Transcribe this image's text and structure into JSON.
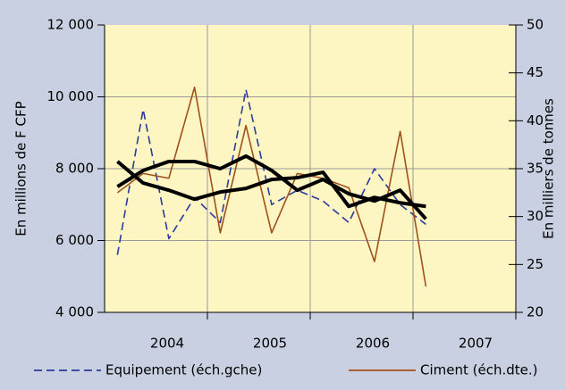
{
  "chart_data": {
    "type": "line",
    "y_label": "En millions de F CFP",
    "y2_label": "En milliers de tonnes",
    "x": [
      2003.125,
      2003.375,
      2003.625,
      2003.875,
      2004.125,
      2004.375,
      2004.625,
      2004.875,
      2005.125,
      2005.375,
      2005.625,
      2005.875,
      2006.125
    ],
    "xlim": [
      2003,
      2007
    ],
    "xticks": [
      2004,
      2005,
      2006,
      2007
    ],
    "ylim": [
      4000,
      12000
    ],
    "yticks": [
      {
        "value": 4000,
        "label": "4 000"
      },
      {
        "value": 6000,
        "label": "6 000"
      },
      {
        "value": 8000,
        "label": "8 000"
      },
      {
        "value": 10000,
        "label": "10 000"
      },
      {
        "value": 12000,
        "label": "12 000"
      }
    ],
    "y2lim": [
      20,
      50
    ],
    "y2ticks": [
      20,
      25,
      30,
      35,
      40,
      45,
      50
    ],
    "grid": true,
    "series": [
      {
        "name": "Equipement (éch.gche)",
        "color": "#2b3a9c",
        "dash": true,
        "axis": "y",
        "values": [
          5600,
          9650,
          6050,
          7200,
          6500,
          10200,
          7000,
          7400,
          7100,
          6500,
          8000,
          7000,
          6450
        ]
      },
      {
        "name": "Ciment (éch.dte.)",
        "color": "#a0501a",
        "axis": "y2",
        "values": [
          32.5,
          34.5,
          34,
          43.5,
          28.3,
          39.5,
          28.3,
          34.5,
          34,
          33,
          25.3,
          38.9,
          22.7
        ]
      },
      {
        "color": "#000000",
        "thick": true,
        "axis": "y",
        "values": [
          8200,
          7600,
          7400,
          7150,
          7350,
          7450,
          7700,
          7750,
          7900,
          6950,
          7200,
          7050,
          6950
        ]
      },
      {
        "color": "#000000",
        "thick": true,
        "axis": "y",
        "values": [
          7500,
          7950,
          8200,
          8200,
          8000,
          8350,
          7950,
          7400,
          7700,
          7300,
          7100,
          7400,
          6600
        ]
      }
    ]
  }
}
